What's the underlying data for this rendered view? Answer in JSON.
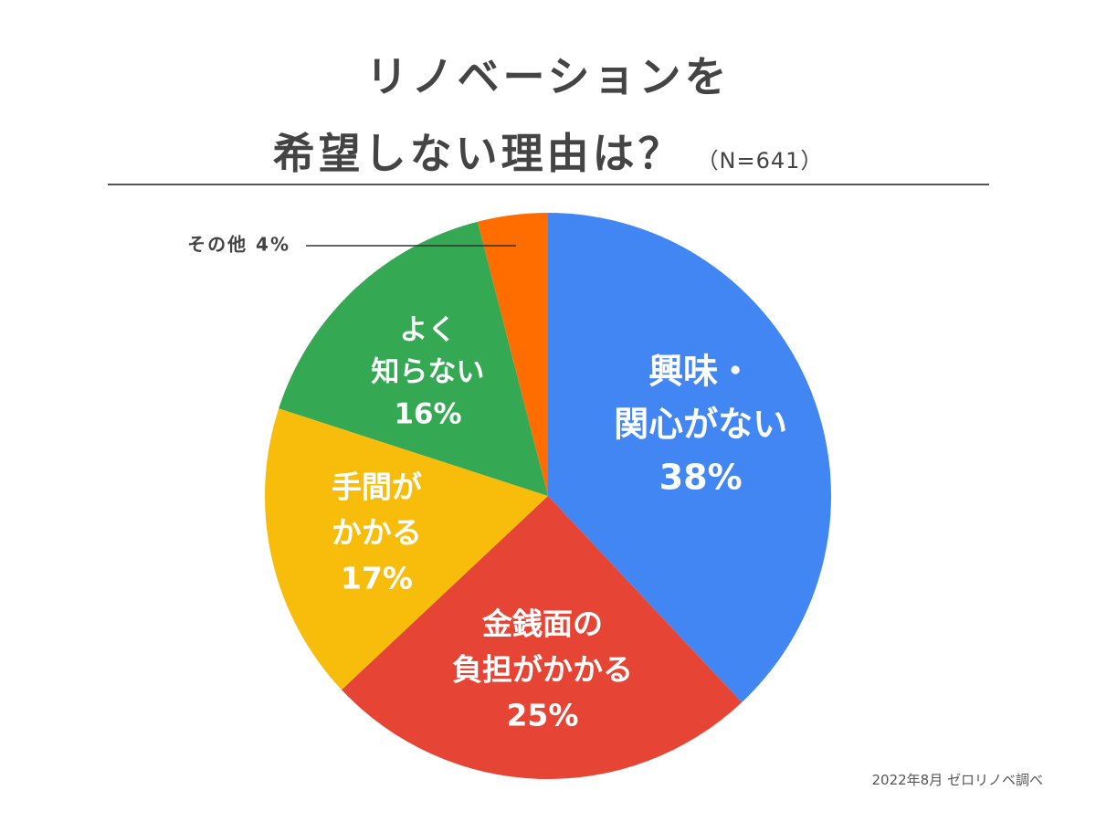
{
  "title": {
    "line1": "リノベーションを",
    "line2": "希望しない理由は？",
    "sample": "（N=641）"
  },
  "source": "2022年8月  ゼロリノベ調べ",
  "chart_data": {
    "type": "pie",
    "title": "リノベーションを希望しない理由は？",
    "n": 641,
    "start": "12 o'clock",
    "direction": "clockwise",
    "slices": [
      {
        "id": "no-interest",
        "label_lines": [
          "興味・",
          "関心がない"
        ],
        "value": 38,
        "percent_text": "38%",
        "color": "#4286f4"
      },
      {
        "id": "cost",
        "label_lines": [
          "金銭面の",
          "負担がかかる"
        ],
        "value": 25,
        "percent_text": "25%",
        "color": "#e64435"
      },
      {
        "id": "effort",
        "label_lines": [
          "手間が",
          "かかる"
        ],
        "value": 17,
        "percent_text": "17%",
        "color": "#f8bc0b"
      },
      {
        "id": "unfamiliar",
        "label_lines": [
          "よく",
          "知らない"
        ],
        "value": 16,
        "percent_text": "16%",
        "color": "#35a853"
      },
      {
        "id": "other",
        "label_lines": [],
        "value": 4,
        "percent_text": "4%",
        "callout": "その他 4%",
        "color": "#ff6d01"
      }
    ]
  }
}
